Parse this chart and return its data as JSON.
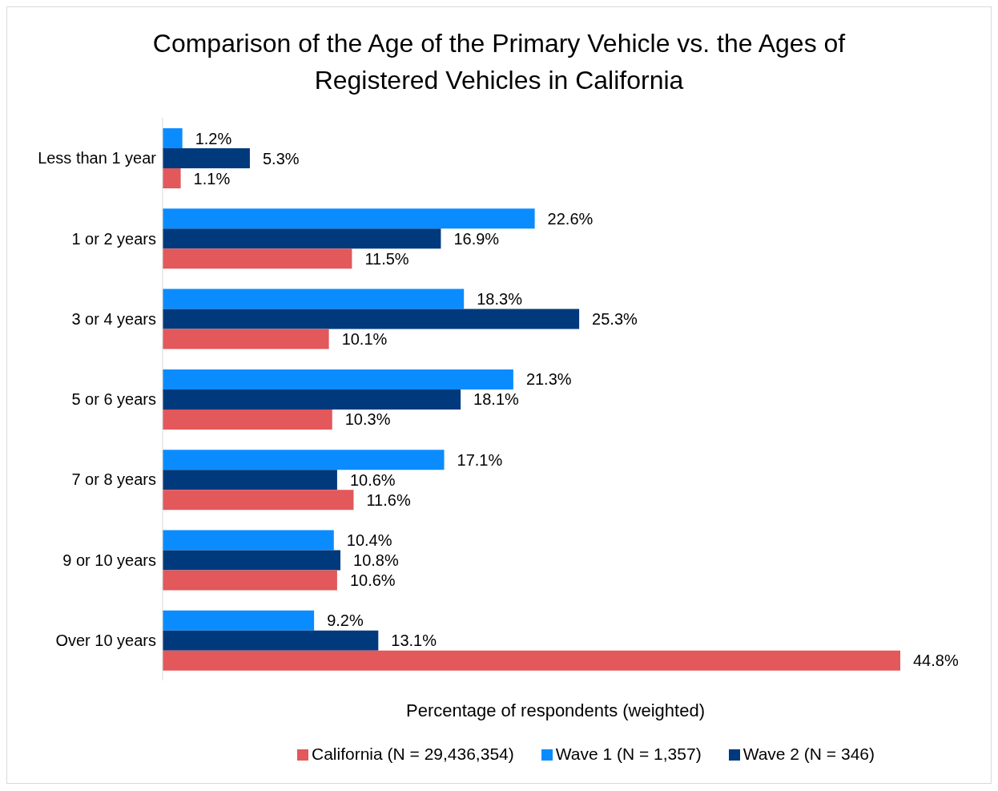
{
  "chart_data": {
    "type": "bar",
    "orientation": "horizontal",
    "title": "Comparison of the Age of the Primary Vehicle vs. the Ages of Registered Vehicles in California",
    "xlabel": "Percentage of respondents (weighted)",
    "categories": [
      "Less than 1 year",
      "1 or 2 years",
      "3 or 4 years",
      "5 or 6 years",
      "7 or 8 years",
      "9 or 10 years",
      "Over 10 years"
    ],
    "series": [
      {
        "name": "Wave 1 (N = 1,357)",
        "color": "#0a8cff",
        "values": [
          1.2,
          22.6,
          18.3,
          21.3,
          17.1,
          10.4,
          9.2
        ],
        "value_labels": [
          "1.2%",
          "22.6%",
          "18.3%",
          "21.3%",
          "17.1%",
          "10.4%",
          "9.2%"
        ]
      },
      {
        "name": "Wave 2 (N = 346)",
        "color": "#003a7d",
        "values": [
          5.3,
          16.9,
          25.3,
          18.1,
          10.6,
          10.8,
          13.1
        ],
        "value_labels": [
          "5.3%",
          "16.9%",
          "25.3%",
          "18.1%",
          "10.6%",
          "10.8%",
          "13.1%"
        ]
      },
      {
        "name": "California (N = 29,436,354)",
        "color": "#e2585b",
        "values": [
          1.1,
          11.5,
          10.1,
          10.3,
          11.6,
          10.6,
          44.8
        ],
        "value_labels": [
          "1.1%",
          "11.5%",
          "10.1%",
          "10.3%",
          "11.6%",
          "10.6%",
          "44.8%"
        ]
      }
    ],
    "grid": false,
    "legend": "bottom"
  }
}
